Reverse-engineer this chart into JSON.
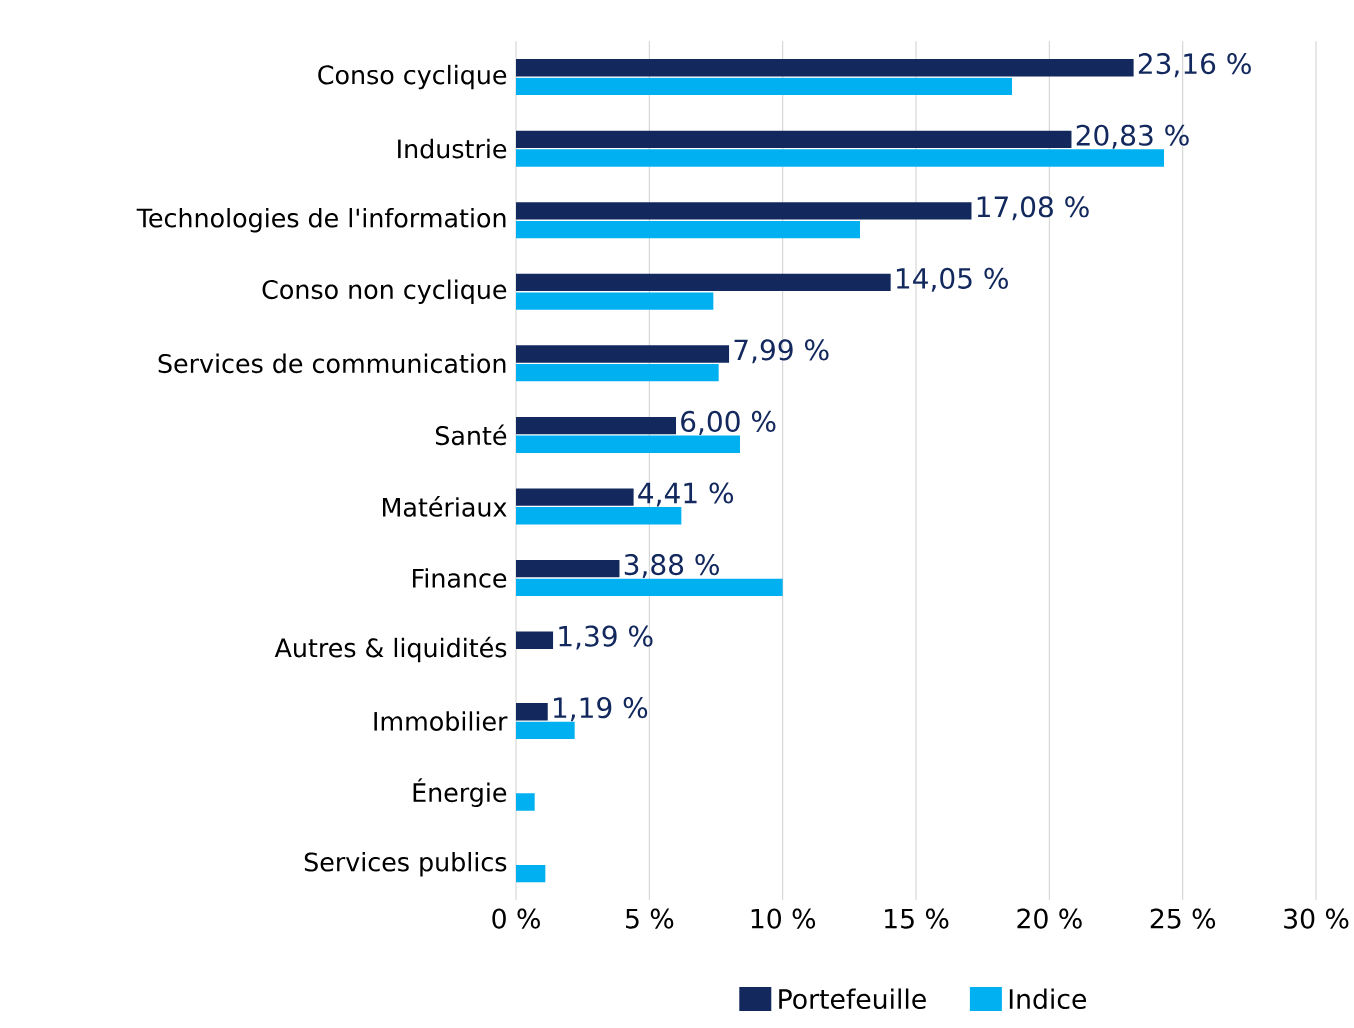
{
  "chart_data": {
    "type": "bar",
    "orientation": "horizontal",
    "categories": [
      "Conso cyclique",
      "Industrie",
      "Technologies de l'information",
      "Conso non cyclique",
      "Services de communication",
      "Santé",
      "Matériaux",
      "Finance",
      "Autres & liquidités",
      "Immobilier",
      "Énergie",
      "Services publics"
    ],
    "series": [
      {
        "name": "Portefeuille",
        "color": "#13295e",
        "values": [
          23.16,
          20.83,
          17.08,
          14.05,
          7.99,
          6.0,
          4.41,
          3.88,
          1.39,
          1.19,
          null,
          null
        ],
        "value_labels": [
          "23,16 %",
          "20,83 %",
          "17,08 %",
          "14,05 %",
          "7,99 %",
          "6,00 %",
          "4,41 %",
          "3,88 %",
          "1,39 %",
          "1,19 %",
          null,
          null
        ]
      },
      {
        "name": "Indice",
        "color": "#00b0f0",
        "values": [
          18.6,
          24.3,
          12.9,
          7.4,
          7.6,
          8.4,
          6.2,
          10.0,
          null,
          2.2,
          0.7,
          1.1
        ]
      }
    ],
    "xlim": [
      0,
      30
    ],
    "xticks": [
      {
        "value": 0,
        "label": "0 %"
      },
      {
        "value": 5,
        "label": "5 %"
      },
      {
        "value": 10,
        "label": "10 %"
      },
      {
        "value": 15,
        "label": "15 %"
      },
      {
        "value": 20,
        "label": "20 %"
      },
      {
        "value": 25,
        "label": "25 %"
      },
      {
        "value": 30,
        "label": "30 %"
      }
    ],
    "grid": "x",
    "legend": "bottom"
  }
}
